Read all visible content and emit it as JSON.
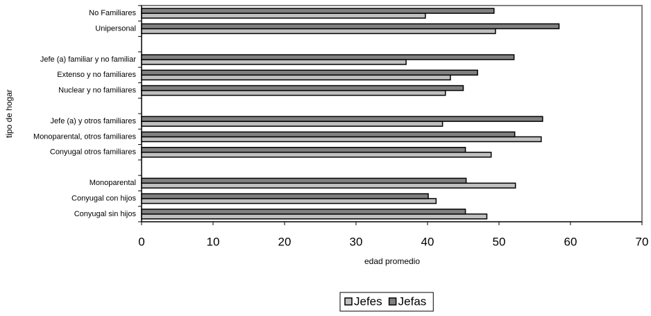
{
  "chart_data": {
    "type": "hbar",
    "x_label": "edad promedio",
    "y_label": "tipo de hogar",
    "categories": [
      "No Familiares",
      "Unipersonal",
      null,
      "Jefe (a) familiar y no familiar",
      "Extenso y no familiares",
      "Nuclear y no familiares",
      null,
      "Jefe (a) y otros familiares",
      "Monoparental, otros familiares",
      "Conyugal otros familiares",
      null,
      "Monoparental",
      "Conyugal con hijos",
      "Conyugal sin hijos"
    ],
    "series": [
      {
        "name": "Jefes",
        "color": "#c0c0c0",
        "values": [
          39.7,
          49.5,
          null,
          37.0,
          43.2,
          42.5,
          null,
          42.1,
          55.9,
          48.9,
          null,
          52.3,
          41.2,
          48.3
        ]
      },
      {
        "name": "Jefas",
        "color": "#808080",
        "values": [
          49.3,
          58.4,
          null,
          52.1,
          47.0,
          45.0,
          null,
          56.1,
          52.2,
          45.3,
          null,
          45.4,
          40.1,
          45.3
        ]
      }
    ],
    "xlim": [
      0,
      70
    ],
    "xticks": [
      0,
      10,
      20,
      30,
      40,
      50,
      60,
      70
    ],
    "legend": "bottom"
  }
}
